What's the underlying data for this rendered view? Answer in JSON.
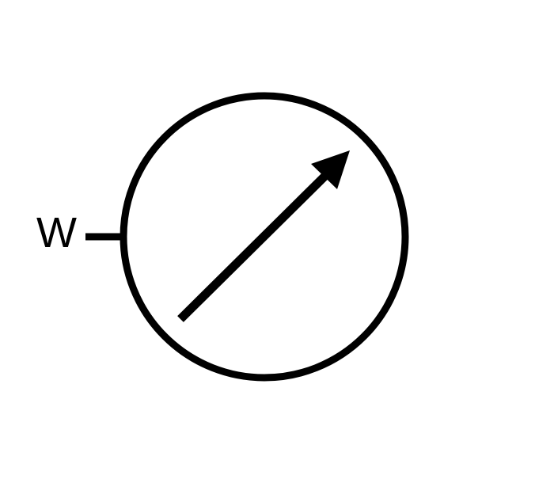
{
  "diagram": {
    "type": "electrical-schematic-symbol",
    "symbol": "variable-meter",
    "terminal_label": "W",
    "colors": {
      "stroke": "#000000",
      "background": "#ffffff"
    }
  }
}
